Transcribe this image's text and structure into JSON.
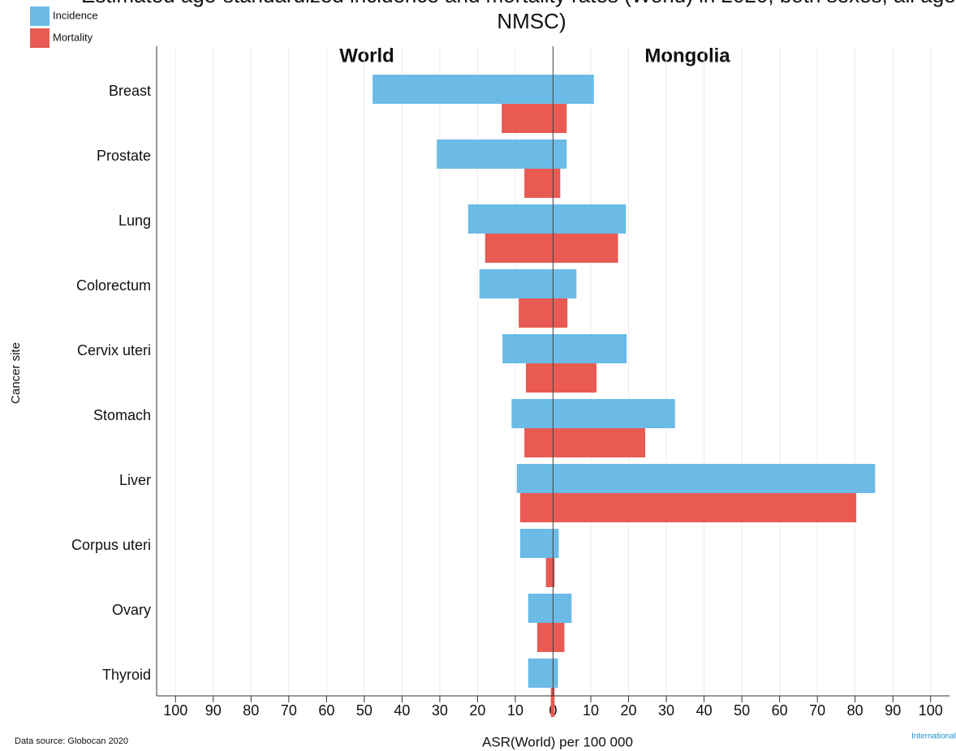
{
  "chart_data": {
    "type": "butterfly-bar",
    "title": [
      "Estimated age-standardized incidence and mortality rates (World) in 2020, both sexes, all ages (excl.",
      "NMSC)"
    ],
    "panels": [
      "World",
      "Mongolia"
    ],
    "categories": [
      "Breast",
      "Prostate",
      "Lung",
      "Colorectum",
      "Cervix uteri",
      "Stomach",
      "Liver",
      "Corpus uteri",
      "Ovary",
      "Thyroid"
    ],
    "series": [
      {
        "name": "Incidence",
        "color": "#6bbbe6",
        "values": [
          [
            -47.8,
            10.8
          ],
          [
            -30.8,
            3.6
          ],
          [
            -22.5,
            19.3
          ],
          [
            -19.5,
            6.2
          ],
          [
            -13.4,
            19.5
          ],
          [
            -11.0,
            32.3
          ],
          [
            -9.6,
            85.3
          ],
          [
            -8.7,
            1.5
          ],
          [
            -6.6,
            4.9
          ],
          [
            -6.6,
            1.3
          ]
        ]
      },
      {
        "name": "Mortality",
        "color": "#e85a52",
        "values": [
          [
            -13.6,
            3.6
          ],
          [
            -7.6,
            1.9
          ],
          [
            -18.0,
            17.2
          ],
          [
            -9.1,
            3.8
          ],
          [
            -7.2,
            11.5
          ],
          [
            -7.6,
            24.4
          ],
          [
            -8.7,
            80.3
          ],
          [
            -1.9,
            0.4
          ],
          [
            -4.2,
            3.0
          ],
          [
            -0.6,
            0.4
          ]
        ]
      }
    ],
    "xlim": [
      -105,
      105
    ],
    "xticks": [
      {
        "value": -100,
        "label": "100"
      },
      {
        "value": -90,
        "label": "90"
      },
      {
        "value": -80,
        "label": "80"
      },
      {
        "value": -70,
        "label": "70"
      },
      {
        "value": -60,
        "label": "60"
      },
      {
        "value": -50,
        "label": "50"
      },
      {
        "value": -40,
        "label": "40"
      },
      {
        "value": -30,
        "label": "30"
      },
      {
        "value": -20,
        "label": "20"
      },
      {
        "value": -10,
        "label": "10"
      },
      0,
      10,
      20,
      30,
      40,
      50,
      60,
      70,
      80,
      90,
      100
    ],
    "xlabel": "ASR(World) per 100 000",
    "ylabel": "Cancer site",
    "source": "Data source: Globocan 2020",
    "logo": "International",
    "grid": true
  }
}
